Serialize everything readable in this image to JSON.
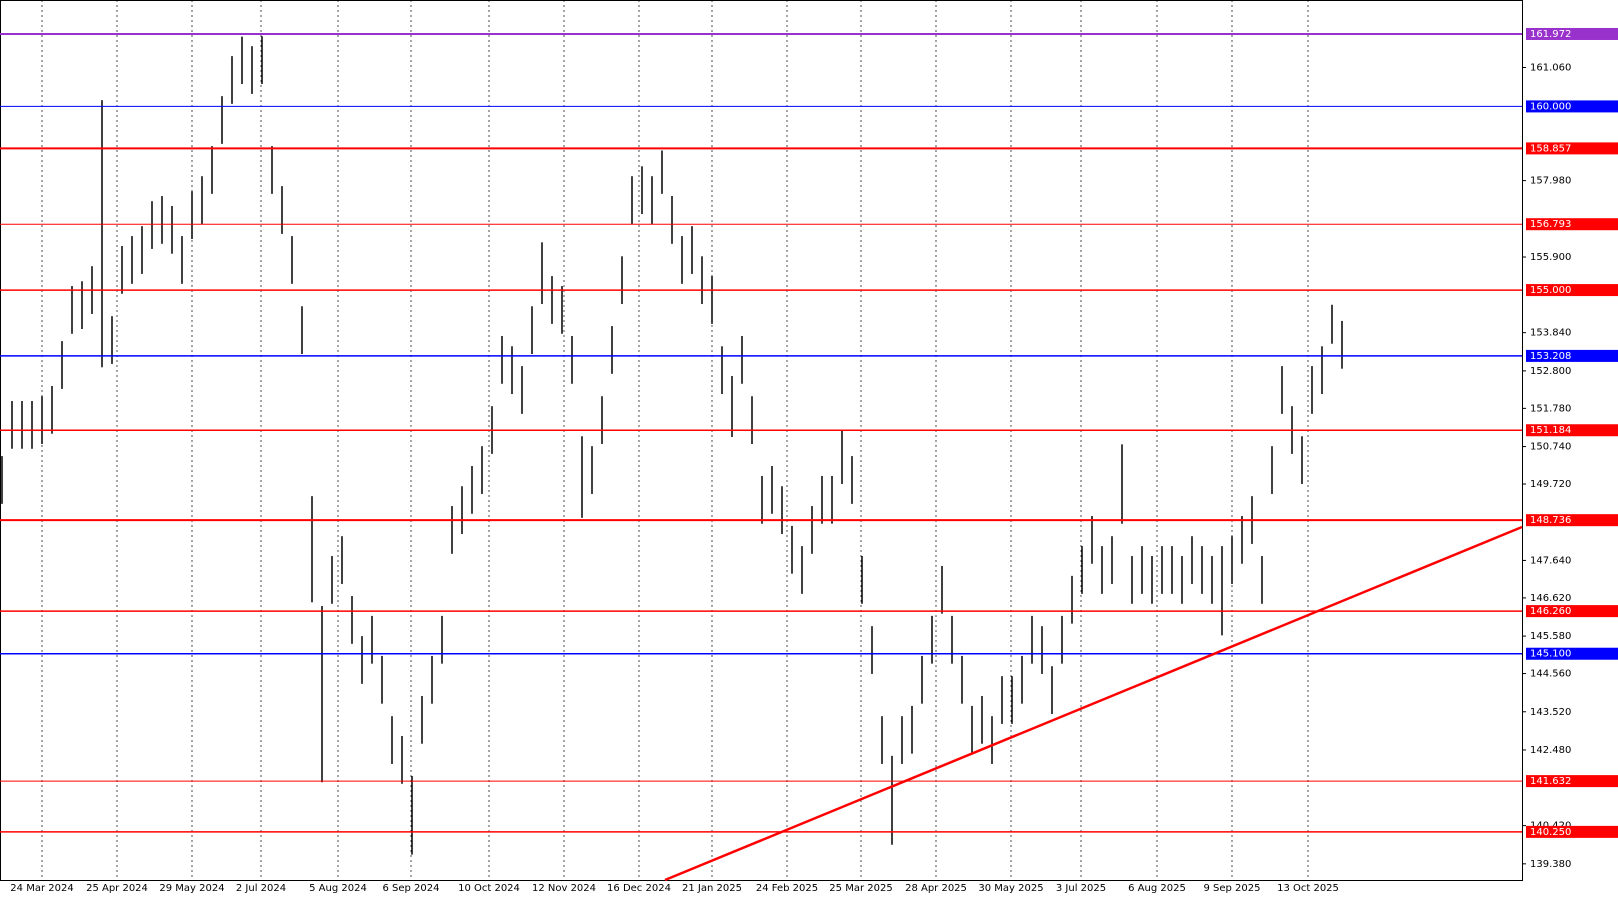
{
  "chart_data": {
    "type": "ohlc",
    "color": "#000000",
    "high": [
      150.48,
      151.98,
      151.98,
      151.98,
      152.11,
      152.39,
      153.61,
      155.11,
      155.24,
      155.65,
      160.17,
      154.29,
      156.2,
      156.47,
      156.74,
      157.42,
      157.56,
      157.29,
      156.47,
      157.69,
      158.1,
      158.92,
      160.28,
      161.37,
      161.9,
      161.64,
      161.91,
      158.92,
      157.83,
      156.47,
      154.56,
      149.39,
      146.4,
      147.76,
      148.3,
      146.67,
      145.58,
      146.13,
      145.04,
      143.4,
      142.86,
      141.77,
      143.95,
      145.04,
      146.13,
      149.12,
      149.66,
      150.21,
      150.75,
      151.84,
      153.75,
      153.47,
      152.93,
      154.56,
      156.3,
      155.38,
      155.11,
      153.75,
      151.02,
      150.75,
      152.11,
      154.02,
      155.92,
      158.1,
      158.37,
      158.1,
      158.8,
      157.56,
      156.47,
      156.74,
      155.92,
      155.38,
      153.47,
      152.66,
      153.75,
      152.11,
      149.94,
      150.21,
      149.66,
      148.58,
      148.03,
      149.12,
      149.94,
      149.94,
      151.17,
      150.48,
      147.76,
      145.85,
      143.4,
      142.32,
      143.4,
      143.68,
      145.04,
      146.13,
      147.49,
      146.13,
      145.04,
      143.68,
      143.95,
      143.4,
      144.49,
      144.49,
      145.04,
      146.13,
      145.85,
      144.76,
      146.13,
      147.22,
      148.03,
      148.85,
      148.03,
      148.3,
      150.8,
      147.76,
      148.03,
      147.76,
      148.03,
      148.03,
      147.76,
      148.3,
      148.03,
      147.76,
      148.03,
      148.3,
      148.85,
      149.39,
      147.76,
      150.75,
      152.93,
      151.84,
      151.02,
      152.93,
      153.47,
      154.6,
      154.16
    ],
    "low": [
      149.18,
      150.68,
      150.68,
      150.68,
      150.81,
      151.09,
      152.31,
      153.81,
      153.94,
      154.35,
      152.9,
      152.99,
      154.9,
      155.17,
      155.44,
      156.12,
      156.26,
      155.99,
      155.17,
      156.39,
      156.8,
      157.62,
      158.98,
      160.07,
      160.61,
      160.34,
      160.61,
      157.62,
      156.53,
      155.17,
      153.26,
      146.5,
      141.6,
      146.46,
      147.0,
      145.37,
      144.28,
      144.83,
      143.74,
      142.1,
      141.56,
      139.63,
      142.65,
      143.74,
      144.83,
      147.82,
      148.36,
      148.91,
      149.45,
      150.54,
      152.45,
      152.17,
      151.63,
      153.26,
      154.62,
      154.08,
      153.81,
      152.45,
      148.8,
      149.45,
      150.81,
      152.72,
      154.62,
      156.8,
      157.07,
      156.8,
      157.62,
      156.26,
      155.17,
      155.44,
      154.62,
      154.08,
      152.17,
      151.0,
      152.45,
      150.81,
      148.64,
      148.91,
      148.36,
      147.28,
      146.73,
      147.82,
      148.64,
      148.64,
      149.72,
      149.18,
      146.46,
      144.55,
      142.1,
      139.9,
      142.1,
      142.38,
      143.74,
      144.83,
      146.19,
      144.83,
      143.74,
      142.38,
      142.65,
      142.1,
      143.19,
      143.19,
      143.74,
      144.83,
      144.55,
      143.46,
      144.83,
      145.92,
      146.73,
      147.55,
      146.73,
      147.0,
      148.64,
      146.46,
      146.73,
      146.46,
      146.73,
      146.73,
      146.46,
      147.0,
      146.73,
      146.46,
      145.6,
      147.0,
      147.55,
      148.09,
      146.46,
      149.45,
      151.63,
      150.54,
      149.72,
      151.63,
      152.17,
      153.54,
      152.86
    ],
    "xlim": [
      0,
      152.2
    ],
    "ylim": [
      138.94,
      162.897
    ],
    "xticks": [
      {
        "value": 4.2,
        "label": "24 Mar 2024"
      },
      {
        "value": 11.7,
        "label": "25 Apr 2024"
      },
      {
        "value": 19.2,
        "label": "29 May 2024"
      },
      {
        "value": 26.1,
        "label": "2 Jul 2024"
      },
      {
        "value": 33.8,
        "label": "5 Aug 2024"
      },
      {
        "value": 41.1,
        "label": "6 Sep 2024"
      },
      {
        "value": 48.9,
        "label": "10 Oct 2024"
      },
      {
        "value": 56.4,
        "label": "12 Nov 2024"
      },
      {
        "value": 63.9,
        "label": "16 Dec 2024"
      },
      {
        "value": 71.2,
        "label": "21 Jan 2025"
      },
      {
        "value": 78.7,
        "label": "24 Feb 2025"
      },
      {
        "value": 86.1,
        "label": "25 Mar 2025"
      },
      {
        "value": 93.6,
        "label": "28 Apr 2025"
      },
      {
        "value": 101.1,
        "label": "30 May 2025"
      },
      {
        "value": 108.1,
        "label": "3 Jul 2025"
      },
      {
        "value": 115.7,
        "label": "6 Aug 2025"
      },
      {
        "value": 123.2,
        "label": "9 Sep 2025"
      },
      {
        "value": 130.8,
        "label": "13 Oct 2025"
      }
    ],
    "yticks": [
      {
        "value": 161.06,
        "label": "161.060"
      },
      {
        "value": 157.98,
        "label": "157.980"
      },
      {
        "value": 155.9,
        "label": "155.900"
      },
      {
        "value": 153.84,
        "label": "153.840"
      },
      {
        "value": 152.8,
        "label": "152.800"
      },
      {
        "value": 151.78,
        "label": "151.780"
      },
      {
        "value": 150.74,
        "label": "150.740"
      },
      {
        "value": 149.72,
        "label": "149.720"
      },
      {
        "value": 147.64,
        "label": "147.640"
      },
      {
        "value": 146.62,
        "label": "146.620"
      },
      {
        "value": 145.58,
        "label": "145.580"
      },
      {
        "value": 144.56,
        "label": "144.560"
      },
      {
        "value": 143.52,
        "label": "143.520"
      },
      {
        "value": 142.48,
        "label": "142.480"
      },
      {
        "value": 140.42,
        "label": "140.420"
      },
      {
        "value": 139.38,
        "label": "139.380"
      }
    ],
    "levels": [
      {
        "value": 161.972,
        "label": "161.972",
        "color": "#9932cc",
        "width": 2
      },
      {
        "value": 160.0,
        "label": "160.000",
        "color": "#0000ff",
        "width": 1
      },
      {
        "value": 158.857,
        "label": "158.857",
        "color": "#ff0000",
        "width": 2
      },
      {
        "value": 156.793,
        "label": "156.793",
        "color": "#ff0000",
        "width": 1
      },
      {
        "value": 155.0,
        "label": "155.000",
        "color": "#ff0000",
        "width": 1.5
      },
      {
        "value": 153.208,
        "label": "153.208",
        "color": "#0000ff",
        "width": 1.5
      },
      {
        "value": 151.184,
        "label": "151.184",
        "color": "#ff0000",
        "width": 1.5
      },
      {
        "value": 148.736,
        "label": "148.736",
        "color": "#ff0000",
        "width": 2
      },
      {
        "value": 146.26,
        "label": "146.260",
        "color": "#ff0000",
        "width": 1.5
      },
      {
        "value": 145.1,
        "label": "145.100",
        "color": "#0000ff",
        "width": 1.5
      },
      {
        "value": 141.632,
        "label": "141.632",
        "color": "#ff0000",
        "width": 1
      },
      {
        "value": 140.25,
        "label": "140.250",
        "color": "#ff0000",
        "width": 1.5
      }
    ],
    "trendline": {
      "x": [
        66.5,
        152.2
      ],
      "y": [
        138.94,
        148.55
      ],
      "color": "#ff0000"
    }
  }
}
